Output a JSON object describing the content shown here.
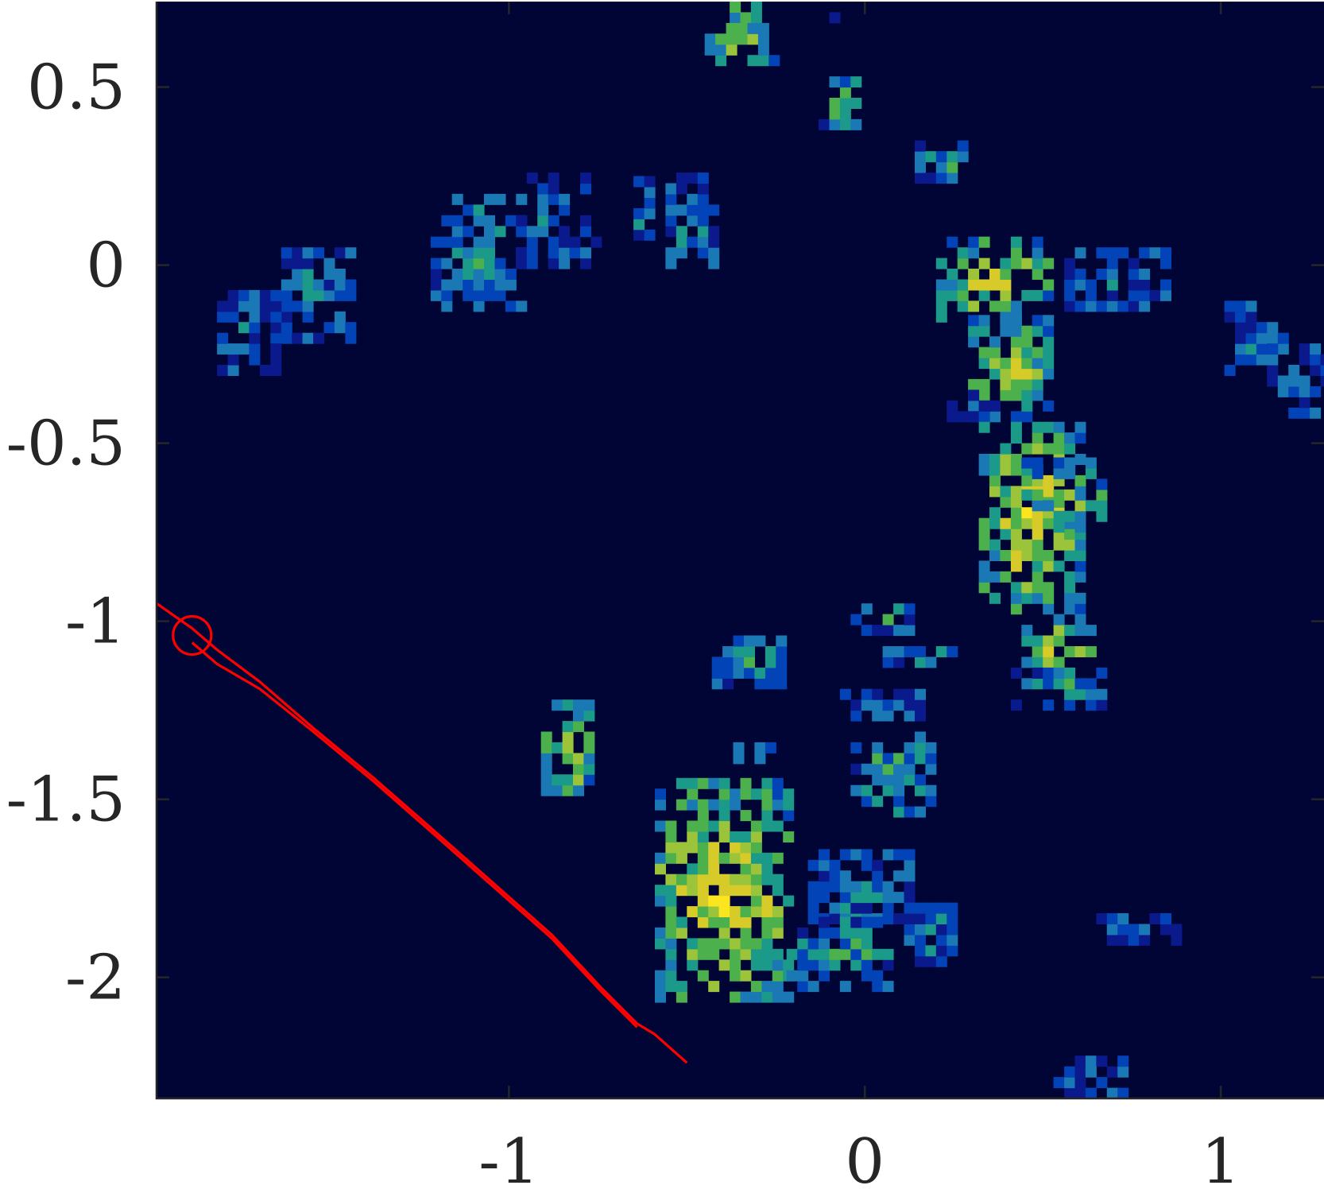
{
  "chart_data": {
    "type": "heatmap",
    "title": "",
    "xlabel": "",
    "ylabel": "",
    "xlim": [
      -1.99,
      1.29
    ],
    "ylim": [
      -2.34,
      0.74
    ],
    "grid": false,
    "legend": "none",
    "background_color": "#000535",
    "colormap": [
      "#000535",
      "#0a1a8c",
      "#0343b8",
      "#1a78b4",
      "#1b9a8a",
      "#4cb04d",
      "#9cc43a",
      "#d6cb28",
      "#fbe51e"
    ],
    "x_ticks": [
      {
        "value": -1,
        "label": "-1"
      },
      {
        "value": 0,
        "label": "0"
      },
      {
        "value": 1,
        "label": "1"
      }
    ],
    "y_ticks": [
      {
        "value": 0.5,
        "label": "0.5"
      },
      {
        "value": 0,
        "label": "0"
      },
      {
        "value": -0.5,
        "label": "-0.5"
      },
      {
        "value": -1,
        "label": "-1"
      },
      {
        "value": -1.5,
        "label": "-1.5"
      },
      {
        "value": -2,
        "label": "-2"
      }
    ],
    "cell_size": 0.03,
    "clusters": [
      {
        "x0": -0.38,
        "x1": -0.29,
        "y0": 0.68,
        "y1": 0.74,
        "level": 0.7,
        "angle": 0
      },
      {
        "x0": -0.45,
        "x1": -0.24,
        "y0": 0.56,
        "y1": 0.68,
        "level": 0.75,
        "angle": 0.5
      },
      {
        "x0": -0.1,
        "x1": -0.04,
        "y0": 0.68,
        "y1": 0.74,
        "level": 0.3,
        "angle": 0
      },
      {
        "x0": -0.13,
        "x1": -0.01,
        "y0": 0.38,
        "y1": 0.52,
        "level": 0.7,
        "angle": 0.6
      },
      {
        "x0": 0.14,
        "x1": 0.29,
        "y0": 0.23,
        "y1": 0.35,
        "level": 0.5,
        "angle": 0.5
      },
      {
        "x0": -1.22,
        "x1": -0.96,
        "y0": -0.13,
        "y1": 0.19,
        "level": 0.5,
        "angle": 0.1
      },
      {
        "x0": -0.98,
        "x1": -0.76,
        "y0": -0.01,
        "y1": 0.26,
        "level": 0.35,
        "angle": 0
      },
      {
        "x0": -0.65,
        "x1": -0.59,
        "y0": 0.04,
        "y1": 0.23,
        "level": 0.45,
        "angle": 0
      },
      {
        "x0": -0.56,
        "x1": -0.41,
        "y0": -0.01,
        "y1": 0.26,
        "level": 0.45,
        "angle": 0
      },
      {
        "x0": -1.67,
        "x1": -1.44,
        "y0": -0.22,
        "y1": 0.05,
        "level": 0.4,
        "angle": -0.3
      },
      {
        "x0": -1.82,
        "x1": -1.65,
        "y0": -0.31,
        "y1": -0.07,
        "level": 0.35,
        "angle": -0.6
      },
      {
        "x0": 0.2,
        "x1": 0.53,
        "y0": -0.16,
        "y1": 0.07,
        "level": 0.85,
        "angle": 0.3
      },
      {
        "x0": 0.29,
        "x1": 0.53,
        "y0": -0.44,
        "y1": -0.16,
        "level": 0.8,
        "angle": 0
      },
      {
        "x0": 0.23,
        "x1": 0.38,
        "y0": -0.44,
        "y1": -0.37,
        "level": 0.2,
        "angle": 0
      },
      {
        "x0": 0.56,
        "x1": 0.86,
        "y0": -0.13,
        "y1": 0.05,
        "level": 0.4,
        "angle": 0.4
      },
      {
        "x0": 1.01,
        "x1": 1.19,
        "y0": -0.31,
        "y1": -0.1,
        "level": 0.35,
        "angle": 0.7
      },
      {
        "x0": 1.13,
        "x1": 1.29,
        "y0": -0.43,
        "y1": -0.22,
        "level": 0.35,
        "angle": 0.7
      },
      {
        "x0": 0.32,
        "x1": 0.62,
        "y0": -0.98,
        "y1": -0.44,
        "level": 0.9,
        "angle": 0
      },
      {
        "x0": 0.44,
        "x1": 0.68,
        "y0": -0.75,
        "y1": -0.56,
        "level": 0.7,
        "angle": 0
      },
      {
        "x0": 0.44,
        "x1": 0.65,
        "y0": -1.13,
        "y1": -1.0,
        "level": 0.85,
        "angle": 0
      },
      {
        "x0": 0.41,
        "x1": 0.68,
        "y0": -1.25,
        "y1": -1.13,
        "level": 0.5,
        "angle": 0
      },
      {
        "x0": -0.04,
        "x1": 0.17,
        "y0": -1.04,
        "y1": -0.95,
        "level": 0.45,
        "angle": 0
      },
      {
        "x0": 0.05,
        "x1": 0.26,
        "y0": -1.13,
        "y1": -1.07,
        "level": 0.5,
        "angle": 0
      },
      {
        "x0": -0.43,
        "x1": -0.22,
        "y0": -1.19,
        "y1": -1.04,
        "level": 0.5,
        "angle": 0
      },
      {
        "x0": -0.07,
        "x1": 0.17,
        "y0": -1.28,
        "y1": -1.19,
        "level": 0.35,
        "angle": 0
      },
      {
        "x0": -0.37,
        "x1": -0.25,
        "y0": -1.4,
        "y1": -1.34,
        "level": 0.55,
        "angle": 0
      },
      {
        "x0": -0.04,
        "x1": 0.2,
        "y0": -1.55,
        "y1": -1.31,
        "level": 0.55,
        "angle": 0
      },
      {
        "x0": -0.91,
        "x1": -0.76,
        "y0": -1.49,
        "y1": -1.22,
        "level": 0.85,
        "angle": 0
      },
      {
        "x0": -0.59,
        "x1": -0.2,
        "y0": -2.07,
        "y1": -1.46,
        "level": 0.92,
        "angle": 0.45
      },
      {
        "x0": -0.16,
        "x1": 0.14,
        "y0": -1.85,
        "y1": -1.64,
        "level": 0.45,
        "angle": 0
      },
      {
        "x0": -0.22,
        "x1": 0.08,
        "y0": -2.04,
        "y1": -1.85,
        "level": 0.55,
        "angle": 0
      },
      {
        "x0": 0.11,
        "x1": 0.26,
        "y0": -1.97,
        "y1": -1.79,
        "level": 0.4,
        "angle": 0
      },
      {
        "x0": 0.65,
        "x1": 0.89,
        "y0": -1.91,
        "y1": -1.82,
        "level": 0.4,
        "angle": 0
      },
      {
        "x0": 0.53,
        "x1": 0.74,
        "y0": -2.34,
        "y1": -2.22,
        "level": 0.35,
        "angle": -0.5
      }
    ],
    "line_series": [
      {
        "x": [
          -1.99,
          -1.89,
          -1.82,
          -1.7,
          -1.55,
          -1.38,
          -1.22,
          -1.05,
          -0.88,
          -0.74,
          -0.67,
          -0.64,
          -0.59,
          -0.5
        ],
        "y": [
          -0.95,
          -1.02,
          -1.08,
          -1.17,
          -1.3,
          -1.44,
          -1.58,
          -1.73,
          -1.88,
          -2.03,
          -2.1,
          -2.13,
          -2.16,
          -2.24
        ],
        "color": "#ff0000"
      },
      {
        "x": [
          -1.89,
          -1.82,
          -1.7,
          -1.55,
          -1.38,
          -1.22,
          -1.05,
          -0.88,
          -0.74,
          -0.64
        ],
        "y": [
          -1.06,
          -1.12,
          -1.19,
          -1.31,
          -1.45,
          -1.59,
          -1.74,
          -1.89,
          -2.04,
          -2.14
        ],
        "color": "#ff0000"
      }
    ],
    "marker": {
      "x": -1.89,
      "y": -1.04,
      "shape": "circle",
      "color": "#ff0000"
    }
  }
}
